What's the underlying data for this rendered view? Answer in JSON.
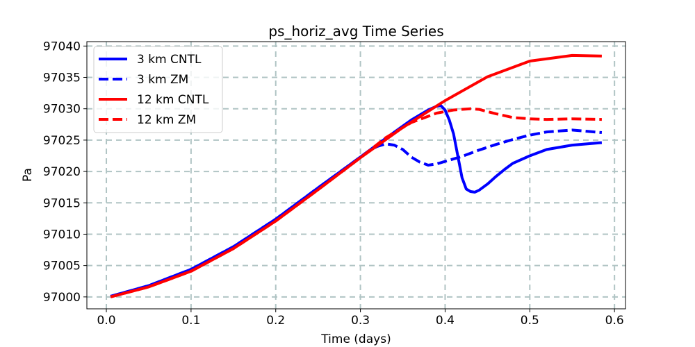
{
  "chart_data": {
    "type": "line",
    "title": "ps_horiz_avg Time Series",
    "xlabel": "Time (days)",
    "ylabel": "Pa",
    "xlim": [
      -0.023,
      0.613
    ],
    "ylim": [
      96998.1,
      97040.7
    ],
    "xticks": [
      0.0,
      0.1,
      0.2,
      0.3,
      0.4,
      0.5,
      0.6
    ],
    "xtick_labels": [
      "0.0",
      "0.1",
      "0.2",
      "0.3",
      "0.4",
      "0.5",
      "0.6"
    ],
    "yticks": [
      97000,
      97005,
      97010,
      97015,
      97020,
      97025,
      97030,
      97035,
      97040
    ],
    "ytick_labels": [
      "97000",
      "97005",
      "97010",
      "97015",
      "97020",
      "97025",
      "97030",
      "97035",
      "97040"
    ],
    "grid": true,
    "legend_position": "top-left",
    "series": [
      {
        "name": "3 km CNTL",
        "color": "#0000ff",
        "style": "solid",
        "x": [
          0.005,
          0.05,
          0.1,
          0.15,
          0.2,
          0.25,
          0.3,
          0.33,
          0.36,
          0.38,
          0.39,
          0.395,
          0.4,
          0.405,
          0.41,
          0.415,
          0.42,
          0.425,
          0.43,
          0.435,
          0.44,
          0.45,
          0.46,
          0.47,
          0.48,
          0.5,
          0.52,
          0.55,
          0.585
        ],
        "y": [
          97000.1,
          97001.8,
          97004.4,
          97008.0,
          97012.4,
          97017.4,
          97022.3,
          97025.3,
          97028.2,
          97029.8,
          97030.4,
          97030.5,
          97029.8,
          97028.2,
          97026.0,
          97022.5,
          97019.0,
          97017.2,
          97016.8,
          97016.7,
          97017.0,
          97018.0,
          97019.2,
          97020.3,
          97021.3,
          97022.5,
          97023.5,
          97024.2,
          97024.6
        ]
      },
      {
        "name": "3 km ZM",
        "color": "#0000ff",
        "style": "dashed",
        "x": [
          0.005,
          0.05,
          0.1,
          0.15,
          0.2,
          0.25,
          0.3,
          0.31,
          0.32,
          0.33,
          0.34,
          0.35,
          0.36,
          0.37,
          0.38,
          0.39,
          0.4,
          0.42,
          0.44,
          0.46,
          0.48,
          0.5,
          0.52,
          0.55,
          0.585
        ],
        "y": [
          97000.1,
          97001.8,
          97004.4,
          97008.0,
          97012.4,
          97017.4,
          97022.3,
          97023.3,
          97024.0,
          97024.4,
          97024.2,
          97023.5,
          97022.3,
          97021.5,
          97021.0,
          97021.2,
          97021.6,
          97022.4,
          97023.4,
          97024.3,
          97025.1,
          97025.8,
          97026.3,
          97026.6,
          97026.2
        ]
      },
      {
        "name": "12 km CNTL",
        "color": "#ff0000",
        "style": "solid",
        "x": [
          0.005,
          0.05,
          0.1,
          0.15,
          0.2,
          0.25,
          0.3,
          0.35,
          0.4,
          0.45,
          0.5,
          0.55,
          0.585
        ],
        "y": [
          97000.0,
          97001.6,
          97004.1,
          97007.7,
          97012.1,
          97017.1,
          97022.2,
          97027.0,
          97031.3,
          97035.1,
          97037.6,
          97038.5,
          97038.4
        ]
      },
      {
        "name": "12 km ZM",
        "color": "#ff0000",
        "style": "dashed",
        "x": [
          0.005,
          0.05,
          0.1,
          0.15,
          0.2,
          0.25,
          0.3,
          0.33,
          0.36,
          0.39,
          0.41,
          0.43,
          0.44,
          0.46,
          0.48,
          0.5,
          0.52,
          0.55,
          0.585
        ],
        "y": [
          97000.0,
          97001.6,
          97004.1,
          97007.7,
          97012.1,
          97017.1,
          97022.2,
          97025.4,
          97027.8,
          97029.3,
          97029.8,
          97030.0,
          97029.9,
          97029.2,
          97028.6,
          97028.4,
          97028.3,
          97028.4,
          97028.3
        ]
      }
    ]
  }
}
